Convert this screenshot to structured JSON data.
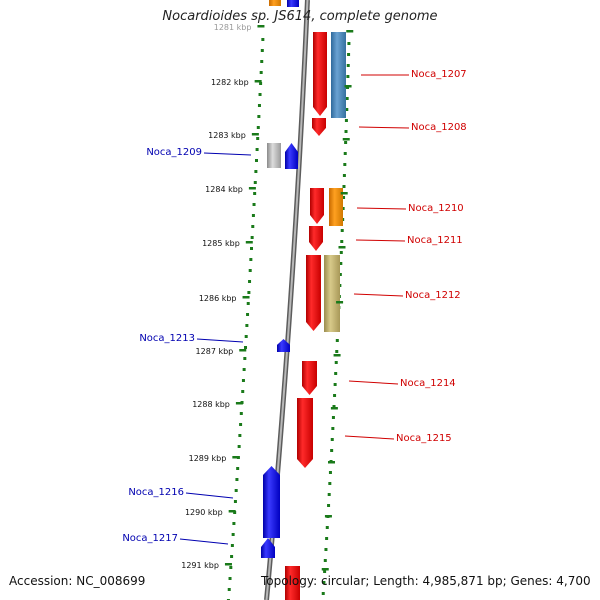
{
  "title": "Nocardioides sp. JS614, complete genome",
  "footer": {
    "accession": "Accession: NC_008699",
    "summary": "Topology: circular; Length: 4,985,871 bp; Genes: 4,700"
  },
  "colors": {
    "forward_gene": "#e80000",
    "reverse_gene": "#1010e0",
    "backbone": "#888888",
    "tick_dots": "#1a7a1a",
    "label_reverse": "#0000b0",
    "label_forward": "#d00000",
    "orange": "#f08c00",
    "steelblue": "#4a86b8",
    "olive": "#bfb070",
    "gray": "#a8a8a8"
  },
  "ruler": [
    {
      "label": "1281 kbp"
    },
    {
      "label": "1282 kbp"
    },
    {
      "label": "1283 kbp"
    },
    {
      "label": "1284 kbp"
    },
    {
      "label": "1285 kbp"
    },
    {
      "label": "1286 kbp"
    },
    {
      "label": "1287 kbp"
    },
    {
      "label": "1288 kbp"
    },
    {
      "label": "1289 kbp"
    },
    {
      "label": "1290 kbp"
    },
    {
      "label": "1291 kbp"
    }
  ],
  "gene_labels": [
    {
      "name": "Noca_1207",
      "strand": "forward"
    },
    {
      "name": "Noca_1208",
      "strand": "forward"
    },
    {
      "name": "Noca_1209",
      "strand": "reverse"
    },
    {
      "name": "Noca_1210",
      "strand": "forward"
    },
    {
      "name": "Noca_1211",
      "strand": "forward"
    },
    {
      "name": "Noca_1212",
      "strand": "forward"
    },
    {
      "name": "Noca_1213",
      "strand": "reverse"
    },
    {
      "name": "Noca_1214",
      "strand": "forward"
    },
    {
      "name": "Noca_1215",
      "strand": "forward"
    },
    {
      "name": "Noca_1216",
      "strand": "reverse"
    },
    {
      "name": "Noca_1217",
      "strand": "reverse"
    }
  ]
}
